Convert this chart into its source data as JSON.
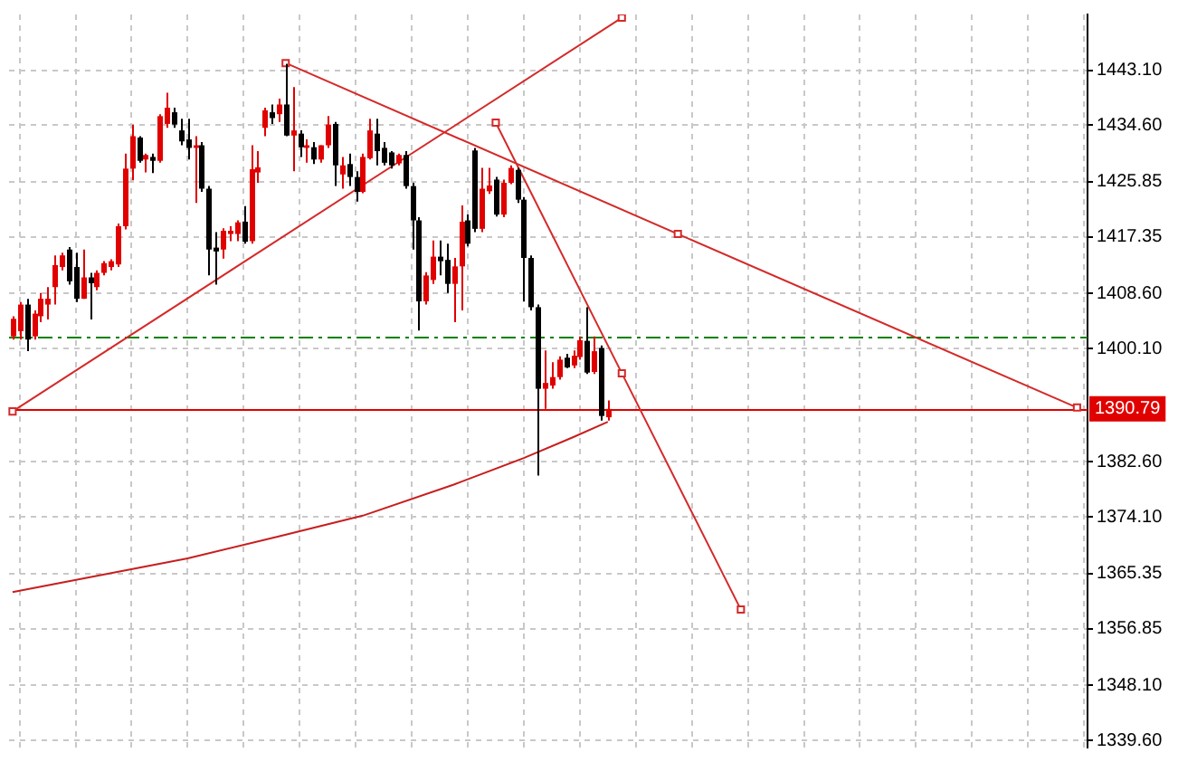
{
  "chart_data": {
    "type": "candlestick",
    "categories": [
      null,
      null,
      null,
      null,
      null,
      null,
      null,
      null,
      null,
      null,
      null,
      null,
      null,
      null,
      null,
      null,
      null,
      null,
      null,
      null,
      null,
      null,
      null,
      null,
      null,
      null,
      null,
      null,
      null,
      null,
      null,
      null,
      null,
      null,
      null,
      null,
      null,
      null,
      null,
      null,
      null,
      null,
      null,
      null,
      null,
      null,
      null,
      null,
      null,
      null,
      null,
      null,
      null,
      null,
      null,
      null,
      null,
      null,
      null,
      null,
      null,
      null,
      null,
      null,
      null,
      null,
      null,
      null,
      null,
      null,
      null,
      null,
      null,
      null,
      null,
      null,
      null,
      null,
      null,
      null,
      null,
      null,
      null,
      null,
      null,
      null,
      null,
      null,
      null,
      null,
      null,
      null,
      null,
      null,
      null,
      null,
      null,
      null,
      null,
      null,
      null,
      null,
      null,
      null,
      null,
      null,
      null,
      null,
      null,
      null,
      null,
      null,
      null,
      null,
      null,
      null,
      null,
      null,
      null,
      null,
      null,
      null,
      null,
      null,
      null,
      null,
      null,
      null,
      null,
      null,
      null,
      null,
      null,
      null,
      null,
      null,
      null,
      null,
      null,
      null,
      null,
      null,
      null,
      null,
      null,
      null,
      null,
      null,
      null,
      null,
      null,
      null,
      null,
      null
    ],
    "ohlc": [
      [
        1402.0,
        1405.1,
        1401.5,
        1404.7
      ],
      [
        1402.8,
        1407.3,
        1401.5,
        1406.9
      ],
      [
        1406.9,
        1407.8,
        1399.7,
        1401.5
      ],
      [
        1402.0,
        1406.0,
        1401.5,
        1405.5
      ],
      [
        1405.1,
        1408.7,
        1404.2,
        1407.8
      ],
      [
        1406.9,
        1409.6,
        1404.6,
        1407.8
      ],
      [
        1409.6,
        1414.5,
        1406.9,
        1413.0
      ],
      [
        1412.7,
        1414.9,
        1412.2,
        1414.5
      ],
      [
        1415.4,
        1415.8,
        1410.0,
        1410.5
      ],
      [
        1412.7,
        1414.9,
        1407.3,
        1407.8
      ],
      [
        1407.8,
        1415.4,
        1407.8,
        1411.1
      ],
      [
        1411.1,
        1411.8,
        1404.6,
        1410.2
      ],
      [
        1409.6,
        1412.2,
        1409.1,
        1411.8
      ],
      [
        1411.8,
        1413.6,
        1411.4,
        1413.3
      ],
      [
        1412.7,
        1413.9,
        1412.2,
        1413.6
      ],
      [
        1413.1,
        1419.4,
        1412.7,
        1419.0
      ],
      [
        1419.0,
        1430.2,
        1418.5,
        1427.9
      ],
      [
        1427.9,
        1434.7,
        1426.1,
        1432.9
      ],
      [
        1432.7,
        1432.9,
        1428.8,
        1429.1
      ],
      [
        1429.3,
        1430.2,
        1427.3,
        1430.0
      ],
      [
        1429.7,
        1430.2,
        1427.2,
        1429.1
      ],
      [
        1429.1,
        1436.3,
        1428.8,
        1436.0
      ],
      [
        1434.8,
        1439.6,
        1434.2,
        1437.3
      ],
      [
        1436.6,
        1437.3,
        1434.2,
        1434.7
      ],
      [
        1433.8,
        1435.6,
        1431.5,
        1432.1
      ],
      [
        1432.4,
        1435.6,
        1429.3,
        1431.1
      ],
      [
        1431.1,
        1432.9,
        1422.6,
        1431.5
      ],
      [
        1431.5,
        1432.0,
        1424.3,
        1424.8
      ],
      [
        1424.8,
        1425.2,
        1411.4,
        1415.4
      ],
      [
        1415.7,
        1418.1,
        1410.0,
        1415.1
      ],
      [
        1415.4,
        1418.7,
        1414.0,
        1418.3
      ],
      [
        1417.8,
        1419.0,
        1416.7,
        1418.3
      ],
      [
        1417.8,
        1419.9,
        1416.7,
        1419.6
      ],
      [
        1419.7,
        1422.1,
        1416.3,
        1416.6
      ],
      [
        1416.7,
        1431.5,
        1416.3,
        1427.8
      ],
      [
        1427.3,
        1430.6,
        1425.7,
        1428.1
      ],
      [
        1434.2,
        1437.3,
        1432.9,
        1436.9
      ],
      [
        1436.6,
        1437.8,
        1434.8,
        1435.7
      ],
      [
        1436.3,
        1438.7,
        1435.1,
        1437.8
      ],
      [
        1437.8,
        1444.1,
        1432.9,
        1433.0
      ],
      [
        1433.0,
        1440.5,
        1427.5,
        1433.8
      ],
      [
        1433.3,
        1433.8,
        1429.7,
        1431.2
      ],
      [
        1431.1,
        1432.4,
        1428.8,
        1431.5
      ],
      [
        1431.2,
        1432.0,
        1428.6,
        1429.3
      ],
      [
        1429.3,
        1431.5,
        1428.8,
        1431.5
      ],
      [
        1431.5,
        1436.0,
        1431.1,
        1434.7
      ],
      [
        1434.8,
        1435.1,
        1425.2,
        1428.4
      ],
      [
        1427.0,
        1429.7,
        1424.8,
        1428.4
      ],
      [
        1428.6,
        1430.2,
        1425.2,
        1426.6
      ],
      [
        1426.6,
        1427.5,
        1422.8,
        1424.3
      ],
      [
        1424.3,
        1430.2,
        1424.1,
        1429.7
      ],
      [
        1429.5,
        1435.6,
        1429.3,
        1433.8
      ],
      [
        1433.3,
        1435.6,
        1428.4,
        1430.6
      ],
      [
        1431.1,
        1432.0,
        1428.4,
        1428.8
      ],
      [
        1430.4,
        1430.6,
        1427.9,
        1428.4
      ],
      [
        1428.7,
        1430.2,
        1428.4,
        1430.0
      ],
      [
        1430.0,
        1430.6,
        1424.8,
        1425.2
      ],
      [
        1425.2,
        1425.7,
        1415.4,
        1419.9
      ],
      [
        1419.9,
        1420.4,
        1402.9,
        1407.4
      ],
      [
        1407.4,
        1411.9,
        1406.9,
        1411.4
      ],
      [
        1410.7,
        1416.8,
        1410.1,
        1414.3
      ],
      [
        1414.3,
        1416.8,
        1411.4,
        1413.6
      ],
      [
        1413.8,
        1416.3,
        1408.7,
        1410.1
      ],
      [
        1410.1,
        1414.1,
        1404.2,
        1412.8
      ],
      [
        1412.8,
        1422.2,
        1406.0,
        1419.7
      ],
      [
        1419.9,
        1420.8,
        1415.9,
        1416.3
      ],
      [
        1430.7,
        1431.1,
        1418.1,
        1418.6
      ],
      [
        1418.6,
        1428.0,
        1418.1,
        1424.8
      ],
      [
        1424.4,
        1428.0,
        1424.0,
        1425.3
      ],
      [
        1426.2,
        1426.6,
        1420.5,
        1420.8
      ],
      [
        1420.8,
        1426.2,
        1420.4,
        1425.7
      ],
      [
        1425.7,
        1428.4,
        1425.5,
        1428.0
      ],
      [
        1427.7,
        1428.0,
        1422.6,
        1423.1
      ],
      [
        1423.1,
        1423.5,
        1407.4,
        1414.1
      ],
      [
        1414.1,
        1414.5,
        1406.0,
        1406.5
      ],
      [
        1406.5,
        1406.9,
        1380.5,
        1393.9
      ],
      [
        1393.9,
        1399.8,
        1390.8,
        1394.8
      ],
      [
        1394.4,
        1398.0,
        1393.9,
        1395.7
      ],
      [
        1395.7,
        1398.9,
        1395.3,
        1398.4
      ],
      [
        1398.7,
        1399.3,
        1397.1,
        1397.2
      ],
      [
        1397.5,
        1399.8,
        1397.1,
        1399.0
      ],
      [
        1398.8,
        1402.0,
        1398.4,
        1401.4
      ],
      [
        1401.3,
        1406.5,
        1396.2,
        1396.4
      ],
      [
        1396.5,
        1402.0,
        1396.2,
        1399.7
      ],
      [
        1400.2,
        1400.6,
        1389.0,
        1389.7
      ],
      [
        1389.5,
        1392.1,
        1389.0,
        1390.79
      ],
      null,
      null,
      null,
      null,
      null,
      null,
      null,
      null,
      null,
      null,
      null,
      null,
      null,
      null,
      null,
      null,
      null,
      null,
      null,
      null,
      null,
      null,
      null,
      null,
      null,
      null,
      null,
      null,
      null,
      null,
      null,
      null,
      null,
      null,
      null,
      null,
      null,
      null,
      null,
      null,
      null,
      null,
      null,
      null,
      null,
      null,
      null,
      null,
      null,
      null,
      null,
      null,
      null,
      null,
      null,
      null,
      null,
      null,
      null,
      null,
      null,
      null,
      null,
      null,
      null,
      null,
      null,
      null
    ],
    "series": [
      {
        "type": "line",
        "color": "#d42a2a",
        "marker": "square",
        "values": [
          1390.4,
          null,
          null,
          null,
          null,
          null,
          null,
          null,
          null,
          null,
          null,
          null,
          null,
          null,
          null,
          null,
          null,
          null,
          null,
          null,
          null,
          null,
          null,
          null,
          null,
          null,
          null,
          null,
          null,
          null,
          null,
          null,
          null,
          null,
          null,
          null,
          null,
          null,
          null,
          null,
          null,
          null,
          null,
          null,
          null,
          null,
          null,
          null,
          null,
          null,
          null,
          null,
          null,
          null,
          null,
          null,
          null,
          null,
          null,
          null,
          null,
          null,
          null,
          null,
          null,
          null,
          null,
          null,
          null,
          null,
          null,
          null,
          null,
          null,
          null,
          null,
          null,
          null,
          null,
          null,
          null,
          null,
          null,
          null,
          null,
          null,
          null,
          1451.2,
          null,
          null,
          null,
          null,
          null,
          null,
          null,
          null,
          null,
          null,
          null,
          null,
          null,
          null,
          null,
          null,
          null,
          null,
          null,
          null,
          null,
          null,
          null,
          null,
          null,
          null,
          null,
          null,
          null,
          null,
          null,
          null,
          null,
          null,
          null,
          null,
          null,
          null,
          null,
          null,
          null,
          null,
          null,
          null,
          null,
          null,
          null,
          null,
          null,
          null,
          null,
          null,
          null,
          null,
          null,
          null,
          null,
          null,
          null,
          null,
          null,
          null,
          null,
          null,
          null,
          null
        ]
      },
      {
        "type": "line",
        "color": "#d42a2a",
        "marker": "square",
        "values": [
          null,
          null,
          null,
          null,
          null,
          null,
          null,
          null,
          null,
          null,
          null,
          null,
          null,
          null,
          null,
          null,
          null,
          null,
          null,
          null,
          null,
          null,
          null,
          null,
          null,
          null,
          null,
          null,
          null,
          null,
          null,
          null,
          null,
          null,
          null,
          null,
          null,
          null,
          null,
          1444.2,
          null,
          null,
          null,
          null,
          null,
          null,
          null,
          null,
          null,
          null,
          null,
          null,
          null,
          null,
          null,
          null,
          null,
          null,
          null,
          null,
          null,
          null,
          null,
          null,
          null,
          null,
          null,
          null,
          null,
          null,
          null,
          null,
          null,
          null,
          null,
          null,
          null,
          null,
          null,
          null,
          null,
          null,
          null,
          null,
          null,
          null,
          null,
          null,
          null,
          null,
          null,
          null,
          null,
          null,
          null,
          1417.8,
          null,
          null,
          null,
          null,
          null,
          null,
          null,
          null,
          null,
          null,
          null,
          null,
          null,
          null,
          null,
          null,
          null,
          null,
          null,
          null,
          null,
          null,
          null,
          null,
          null,
          null,
          null,
          null,
          null,
          null,
          null,
          null,
          null,
          null,
          null,
          null,
          null,
          null,
          null,
          null,
          null,
          null,
          null,
          null,
          null,
          null,
          null,
          null,
          null,
          null,
          null,
          null,
          null,
          null,
          null,
          null,
          1391.0,
          null
        ]
      },
      {
        "type": "line",
        "color": "#d42a2a",
        "marker": "square",
        "values": [
          null,
          null,
          null,
          null,
          null,
          null,
          null,
          null,
          null,
          null,
          null,
          null,
          null,
          null,
          null,
          null,
          null,
          null,
          null,
          null,
          null,
          null,
          null,
          null,
          null,
          null,
          null,
          null,
          null,
          null,
          null,
          null,
          null,
          null,
          null,
          null,
          null,
          null,
          null,
          null,
          null,
          null,
          null,
          null,
          null,
          null,
          null,
          null,
          null,
          null,
          null,
          null,
          null,
          null,
          null,
          null,
          null,
          null,
          null,
          null,
          null,
          null,
          null,
          null,
          null,
          null,
          null,
          null,
          null,
          1435.0,
          null,
          null,
          null,
          null,
          null,
          null,
          null,
          null,
          null,
          null,
          null,
          null,
          null,
          null,
          null,
          null,
          null,
          1396.3,
          null,
          null,
          null,
          null,
          null,
          null,
          null,
          null,
          null,
          null,
          null,
          null,
          null,
          null,
          null,
          null,
          1359.8,
          null,
          null,
          null,
          null,
          null,
          null,
          null,
          null,
          null,
          null,
          null,
          null,
          null,
          null,
          null,
          null,
          null,
          null,
          null,
          null,
          null,
          null,
          null,
          null,
          null,
          null,
          null,
          null,
          null,
          null,
          null,
          null,
          null,
          null,
          null,
          null,
          null,
          null,
          null,
          null,
          null,
          null,
          null,
          null,
          null,
          null,
          null,
          null,
          null
        ]
      },
      {
        "type": "line",
        "color": "#c81e1e",
        "marker": "none",
        "values": [
          1362.5,
          null,
          null,
          null,
          null,
          null,
          null,
          null,
          null,
          null,
          null,
          null,
          null,
          null,
          null,
          null,
          null,
          null,
          null,
          null,
          null,
          null,
          null,
          null,
          null,
          1367.7,
          null,
          null,
          null,
          null,
          null,
          null,
          null,
          null,
          null,
          null,
          null,
          null,
          1371.1,
          null,
          null,
          null,
          null,
          null,
          null,
          null,
          null,
          null,
          null,
          null,
          1374.3,
          null,
          null,
          null,
          null,
          null,
          null,
          null,
          null,
          null,
          null,
          null,
          null,
          1379.1,
          null,
          null,
          null,
          null,
          null,
          null,
          null,
          null,
          null,
          1383.2,
          null,
          null,
          null,
          null,
          null,
          null,
          1386.4,
          null,
          null,
          null,
          null,
          1388.8,
          null,
          null,
          null,
          null,
          null,
          null,
          null,
          null,
          null,
          null,
          null,
          null,
          null,
          null,
          null,
          null,
          null,
          null,
          null,
          null,
          null,
          null,
          null,
          null,
          null,
          null,
          null,
          null,
          null,
          null,
          null,
          null,
          null,
          null,
          null,
          null,
          null,
          null,
          null,
          null,
          null,
          null,
          null,
          null,
          null,
          null,
          null,
          null,
          null,
          null,
          null,
          null,
          null,
          null,
          null,
          null,
          null,
          null,
          null,
          null,
          null,
          null,
          null,
          null,
          null,
          null,
          null,
          null
        ]
      }
    ],
    "ylim": [
      1338.5,
      1451.7
    ],
    "yticks": [
      {
        "value": 1443.1,
        "label": "1443.10"
      },
      {
        "value": 1434.6,
        "label": "1434.60"
      },
      {
        "value": 1425.85,
        "label": "1425.85"
      },
      {
        "value": 1417.35,
        "label": "1417.35"
      },
      {
        "value": 1408.6,
        "label": "1408.60"
      },
      {
        "value": 1400.1,
        "label": "1400.10"
      },
      {
        "value": 1382.6,
        "label": "1382.60"
      },
      {
        "value": 1374.1,
        "label": "1374.10"
      },
      {
        "value": 1365.35,
        "label": "1365.35"
      },
      {
        "value": 1356.85,
        "label": "1356.85"
      },
      {
        "value": 1348.1,
        "label": "1348.10"
      },
      {
        "value": 1339.6,
        "label": "1339.60"
      }
    ],
    "ref_lines": [
      {
        "axis": "y",
        "value": 1402.0,
        "color": "#008000",
        "line_style": "dashed"
      },
      {
        "axis": "y",
        "value": 1390.79,
        "label": "1390.79",
        "color": "#e00000"
      }
    ],
    "grid": true,
    "tick_labels": "y"
  }
}
